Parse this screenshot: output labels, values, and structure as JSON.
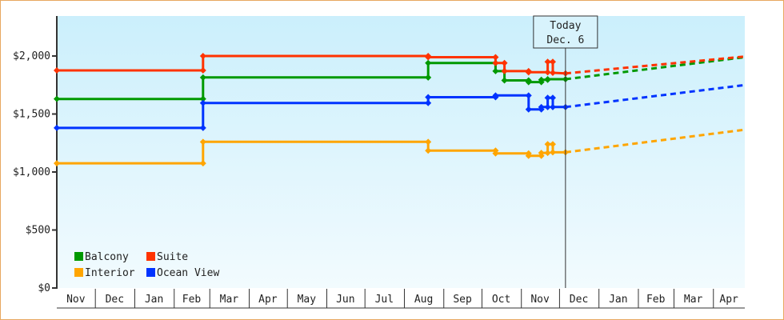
{
  "chart_data": {
    "type": "line",
    "title": "",
    "xlabel": "",
    "ylabel": "",
    "ylim": [
      0,
      2345
    ],
    "xlim": [
      "2012-11-01",
      "2014-04-26"
    ],
    "yticks": [
      0,
      500,
      1000,
      1500,
      2000
    ],
    "ytick_labels": [
      "$0",
      "$500",
      "$1,000",
      "$1,500",
      "$2,000"
    ],
    "month_labels": [
      "Nov",
      "Dec",
      "Jan",
      "Feb",
      "Mar",
      "Apr",
      "May",
      "Jun",
      "Jul",
      "Aug",
      "Sep",
      "Oct",
      "Nov",
      "Dec",
      "Jan",
      "Feb",
      "Mar",
      "Apr"
    ],
    "grid": false,
    "legend_placement": "bottom-left",
    "today": {
      "date": "2013-12-06",
      "line1": "Today",
      "line2": "Dec. 6"
    },
    "series": [
      {
        "name": "Balcony",
        "color": "#009900",
        "points": [
          [
            "2012-11-01",
            1630
          ],
          [
            "2013-02-24",
            1630
          ],
          [
            "2013-02-24",
            1815
          ],
          [
            "2013-08-20",
            1815
          ],
          [
            "2013-08-20",
            1940
          ],
          [
            "2013-10-12",
            1940
          ],
          [
            "2013-10-12",
            1870
          ],
          [
            "2013-10-19",
            1870
          ],
          [
            "2013-10-19",
            1790
          ],
          [
            "2013-11-07",
            1790
          ],
          [
            "2013-11-07",
            1775
          ],
          [
            "2013-11-17",
            1775
          ],
          [
            "2013-11-17",
            1795
          ],
          [
            "2013-11-22",
            1795
          ],
          [
            "2013-11-22",
            1800
          ],
          [
            "2013-12-06",
            1800
          ]
        ],
        "forecast": [
          [
            "2013-12-06",
            1800
          ],
          [
            "2014-04-26",
            1990
          ]
        ]
      },
      {
        "name": "Suite",
        "color": "#ff3300",
        "points": [
          [
            "2012-11-01",
            1876
          ],
          [
            "2013-02-24",
            1876
          ],
          [
            "2013-02-24",
            2000
          ],
          [
            "2013-08-20",
            2000
          ],
          [
            "2013-08-20",
            1990
          ],
          [
            "2013-10-12",
            1990
          ],
          [
            "2013-10-12",
            1940
          ],
          [
            "2013-10-19",
            1940
          ],
          [
            "2013-10-19",
            1870
          ],
          [
            "2013-11-07",
            1870
          ],
          [
            "2013-11-07",
            1860
          ],
          [
            "2013-11-22",
            1860
          ],
          [
            "2013-11-22",
            1950
          ],
          [
            "2013-11-26",
            1950
          ],
          [
            "2013-11-26",
            1855
          ],
          [
            "2013-12-06",
            1850
          ]
        ],
        "forecast": [
          [
            "2013-12-06",
            1850
          ],
          [
            "2014-04-26",
            1995
          ]
        ]
      },
      {
        "name": "Interior",
        "color": "#ffa500",
        "points": [
          [
            "2012-11-01",
            1075
          ],
          [
            "2013-02-24",
            1075
          ],
          [
            "2013-02-24",
            1260
          ],
          [
            "2013-08-20",
            1260
          ],
          [
            "2013-08-20",
            1185
          ],
          [
            "2013-10-12",
            1185
          ],
          [
            "2013-10-12",
            1160
          ],
          [
            "2013-11-07",
            1160
          ],
          [
            "2013-11-07",
            1140
          ],
          [
            "2013-11-17",
            1140
          ],
          [
            "2013-11-17",
            1165
          ],
          [
            "2013-11-22",
            1165
          ],
          [
            "2013-11-22",
            1240
          ],
          [
            "2013-11-26",
            1240
          ],
          [
            "2013-11-26",
            1170
          ],
          [
            "2013-12-06",
            1170
          ]
        ],
        "forecast": [
          [
            "2013-12-06",
            1170
          ],
          [
            "2014-04-26",
            1365
          ]
        ]
      },
      {
        "name": "Ocean View",
        "color": "#0033ff",
        "points": [
          [
            "2012-11-01",
            1380
          ],
          [
            "2013-02-24",
            1380
          ],
          [
            "2013-02-24",
            1595
          ],
          [
            "2013-08-20",
            1595
          ],
          [
            "2013-08-20",
            1645
          ],
          [
            "2013-10-12",
            1645
          ],
          [
            "2013-10-12",
            1660
          ],
          [
            "2013-11-07",
            1660
          ],
          [
            "2013-11-07",
            1540
          ],
          [
            "2013-11-17",
            1540
          ],
          [
            "2013-11-17",
            1560
          ],
          [
            "2013-11-22",
            1560
          ],
          [
            "2013-11-22",
            1640
          ],
          [
            "2013-11-26",
            1640
          ],
          [
            "2013-11-26",
            1560
          ],
          [
            "2013-12-06",
            1560
          ]
        ],
        "forecast": [
          [
            "2013-12-06",
            1560
          ],
          [
            "2014-04-26",
            1750
          ]
        ]
      }
    ]
  }
}
